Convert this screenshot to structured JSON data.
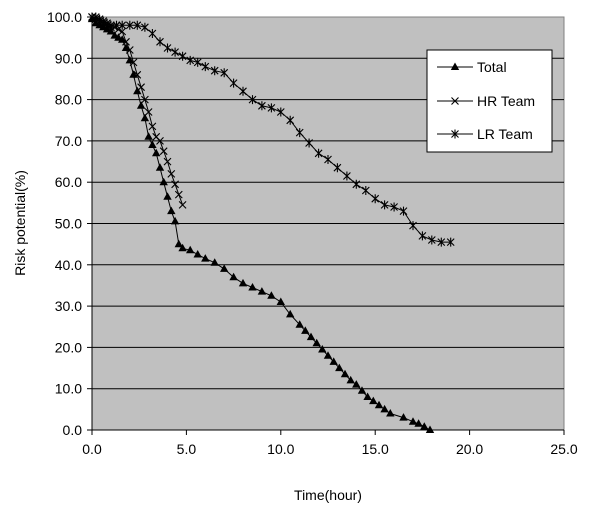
{
  "chart_data": {
    "type": "line",
    "xlabel": "Time(hour)",
    "ylabel": "Risk potential(%)",
    "xlim": [
      0,
      25
    ],
    "ylim": [
      0,
      100
    ],
    "x_ticks": [
      "0.0",
      "5.0",
      "10.0",
      "15.0",
      "20.0",
      "25.0"
    ],
    "y_ticks": [
      "0.0",
      "10.0",
      "20.0",
      "30.0",
      "40.0",
      "50.0",
      "60.0",
      "70.0",
      "80.0",
      "90.0",
      "100.0"
    ],
    "grid": "horizontal",
    "legend_position": "top-right",
    "plot_background": "#c0c0c0",
    "series": [
      {
        "name": "Total",
        "marker": "triangle",
        "color": "#000000",
        "x": [
          0,
          0.2,
          0.4,
          0.6,
          0.8,
          1.0,
          1.2,
          1.4,
          1.6,
          1.8,
          2.0,
          2.2,
          2.4,
          2.6,
          2.8,
          3.0,
          3.2,
          3.4,
          3.6,
          3.8,
          4.0,
          4.2,
          4.4,
          4.6,
          4.8,
          5.2,
          5.6,
          6.0,
          6.5,
          7.0,
          7.5,
          8.0,
          8.5,
          9.0,
          9.5,
          10.0,
          10.5,
          11.0,
          11.3,
          11.6,
          11.9,
          12.2,
          12.5,
          12.8,
          13.1,
          13.4,
          13.7,
          14.0,
          14.3,
          14.6,
          14.9,
          15.2,
          15.5,
          15.8,
          16.5,
          17.0,
          17.3,
          17.6,
          17.9
        ],
        "y": [
          99.5,
          98.5,
          98,
          97.5,
          97,
          96.5,
          95.5,
          95,
          94.5,
          92.5,
          89.5,
          86,
          82,
          78.5,
          75.5,
          71,
          69,
          67,
          63.5,
          60,
          56.5,
          53,
          50.5,
          45,
          44,
          43.5,
          42.5,
          41.5,
          40.5,
          39,
          37,
          35.5,
          34.5,
          33.5,
          32.5,
          31,
          28,
          25.5,
          24,
          22.5,
          21,
          19.5,
          18,
          16.5,
          15,
          13.5,
          12,
          11,
          9.5,
          8,
          7,
          6,
          5,
          4,
          3,
          2,
          1.5,
          0.8,
          0
        ]
      },
      {
        "name": "HR Team",
        "marker": "x",
        "color": "#000000",
        "x": [
          0,
          0.2,
          0.4,
          0.6,
          0.8,
          1.0,
          1.2,
          1.4,
          1.6,
          1.8,
          2.0,
          2.2,
          2.4,
          2.6,
          2.8,
          3.0,
          3.2,
          3.4,
          3.6,
          3.8,
          4.0,
          4.2,
          4.4,
          4.6,
          4.8
        ],
        "y": [
          100,
          99.5,
          99,
          98.5,
          98,
          97.5,
          97.5,
          97,
          96.5,
          94,
          92,
          89,
          86,
          83,
          80,
          77,
          73.5,
          71,
          70,
          67.5,
          65,
          62,
          59.5,
          57,
          54.5
        ]
      },
      {
        "name": "LR Team",
        "marker": "star",
        "color": "#000000",
        "x": [
          0,
          0.2,
          0.4,
          0.6,
          0.8,
          1.0,
          1.3,
          1.6,
          2.0,
          2.4,
          2.8,
          3.2,
          3.6,
          4.0,
          4.4,
          4.8,
          5.2,
          5.6,
          6.0,
          6.5,
          7.0,
          7.5,
          8.0,
          8.5,
          9.0,
          9.5,
          10.0,
          10.5,
          11.0,
          11.5,
          12.0,
          12.5,
          13.0,
          13.5,
          14.0,
          14.5,
          15.0,
          15.5,
          16.0,
          16.5,
          17.0,
          17.5,
          18.0,
          18.5,
          19.0
        ],
        "y": [
          100,
          100,
          99.5,
          99,
          98.5,
          98,
          98,
          98,
          98,
          98,
          97.5,
          96,
          94,
          92.5,
          91.5,
          90.5,
          89.5,
          89,
          88,
          87,
          86.5,
          84,
          82,
          80,
          78.5,
          78,
          77,
          75,
          72,
          69.5,
          67,
          65.5,
          63.5,
          61.5,
          59.5,
          58,
          56,
          54.5,
          54,
          53,
          49.5,
          47,
          46,
          45.5,
          45.5
        ]
      }
    ]
  }
}
